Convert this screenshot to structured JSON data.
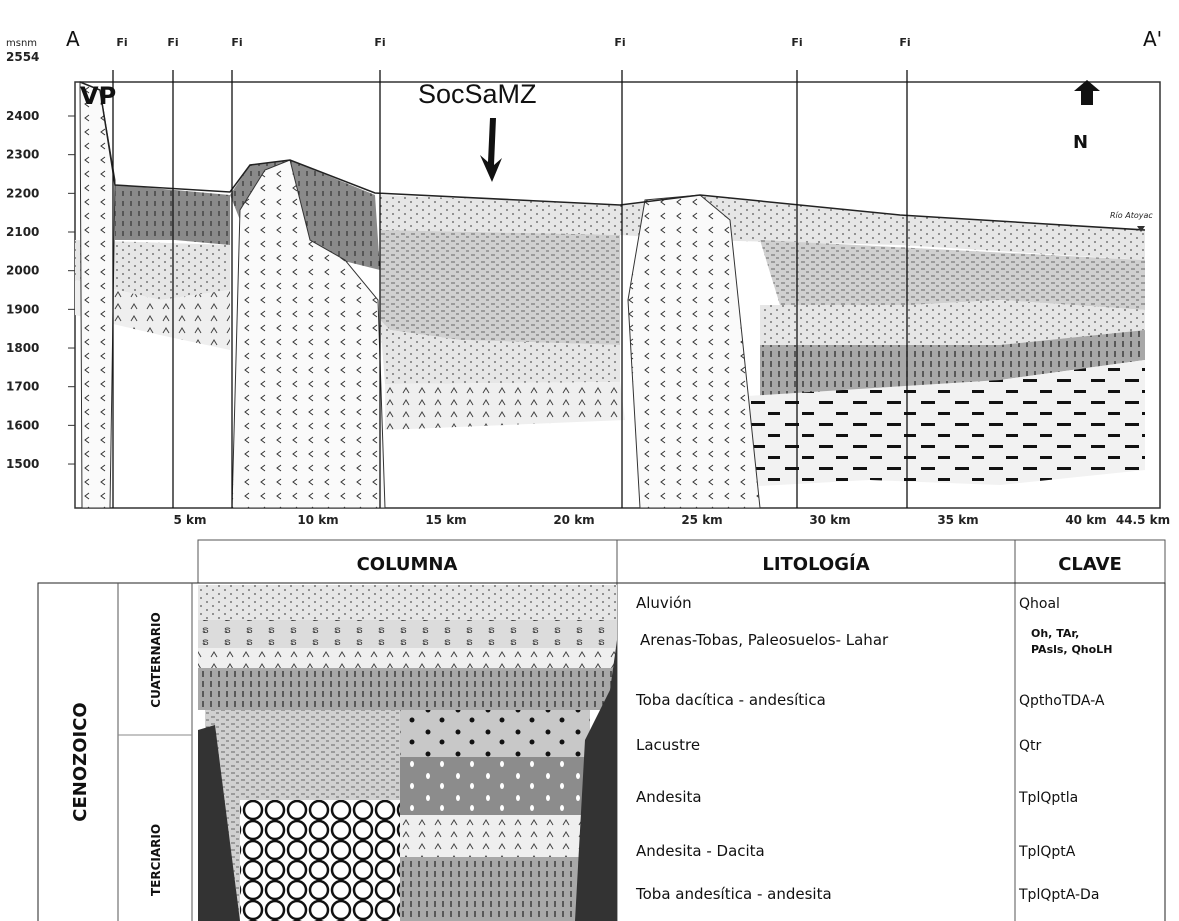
{
  "section": {
    "unit": "msnm",
    "top": "2554",
    "start": "A",
    "end": "A'",
    "faults": [
      "Fi",
      "Fi",
      "Fi",
      "Fi",
      "Fi",
      "Fi",
      "Fi"
    ],
    "vp": "VP",
    "zone": "SocSaMZ",
    "north": "N",
    "river": "Río Atoyac",
    "y_labels": [
      2400,
      2300,
      2200,
      2100,
      2000,
      1900,
      1800,
      1700,
      1600,
      1500
    ],
    "x_labels": [
      "5 km",
      "10 km",
      "15 km",
      "20 km",
      "25 km",
      "30 km",
      "35 km",
      "40 km",
      "44.5 km"
    ]
  },
  "table": {
    "headers": [
      "COLUMNA",
      "LITOLOGÍA",
      "CLAVE"
    ],
    "era": "CENOZOICO",
    "periods": [
      "CUATERNARIO",
      "TERCIARIO"
    ],
    "rows": [
      [
        "Aluvión",
        "Qhoal"
      ],
      [
        "Arenas-Tobas, Paleosuelos- Lahar",
        "Oh, TAr,\nPAsls, QhoLH"
      ],
      [
        "Toba dacítica - andesítica",
        "QpthoTDA-A"
      ],
      [
        "Lacustre",
        "Qtr"
      ],
      [
        "Andesita",
        "TplQptla"
      ],
      [
        "Andesita - Dacita",
        "TplQptA"
      ],
      [
        "Toba andesítica - andesita",
        "TplQptA-Da"
      ]
    ]
  }
}
